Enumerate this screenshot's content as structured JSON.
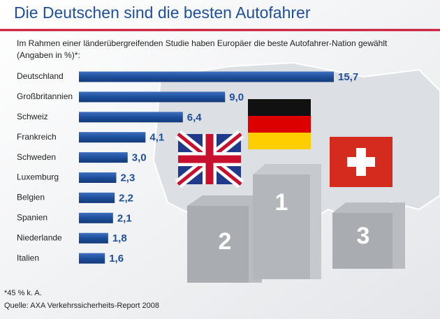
{
  "chart_data": {
    "type": "bar",
    "title": "Die Deutschen sind die besten Autofahrer",
    "subtitle": "Im Rahmen einer länderübergreifenden Studie haben Europäer die beste Autofahrer-Nation gewählt",
    "subtitle_2": "(Angaben in %)*:",
    "categories": [
      "Deutschland",
      "Großbritannien",
      "Schweiz",
      "Frankreich",
      "Schweden",
      "Luxemburg",
      "Belgien",
      "Spanien",
      "Niederlande",
      "Italien"
    ],
    "values": [
      15.7,
      9.0,
      6.4,
      4.1,
      3.0,
      2.3,
      2.2,
      2.1,
      1.8,
      1.6
    ],
    "value_labels": [
      "15,7",
      "9,0",
      "6,4",
      "4,1",
      "3,0",
      "2,3",
      "2,2",
      "2,1",
      "1,8",
      "1,6"
    ],
    "color": "#1d4f9c",
    "annotations": [
      "2",
      "1",
      "3"
    ],
    "footnote": "*45 % k. A.",
    "source": "Quelle: AXA Verkehrssicherheits-Report 2008"
  }
}
